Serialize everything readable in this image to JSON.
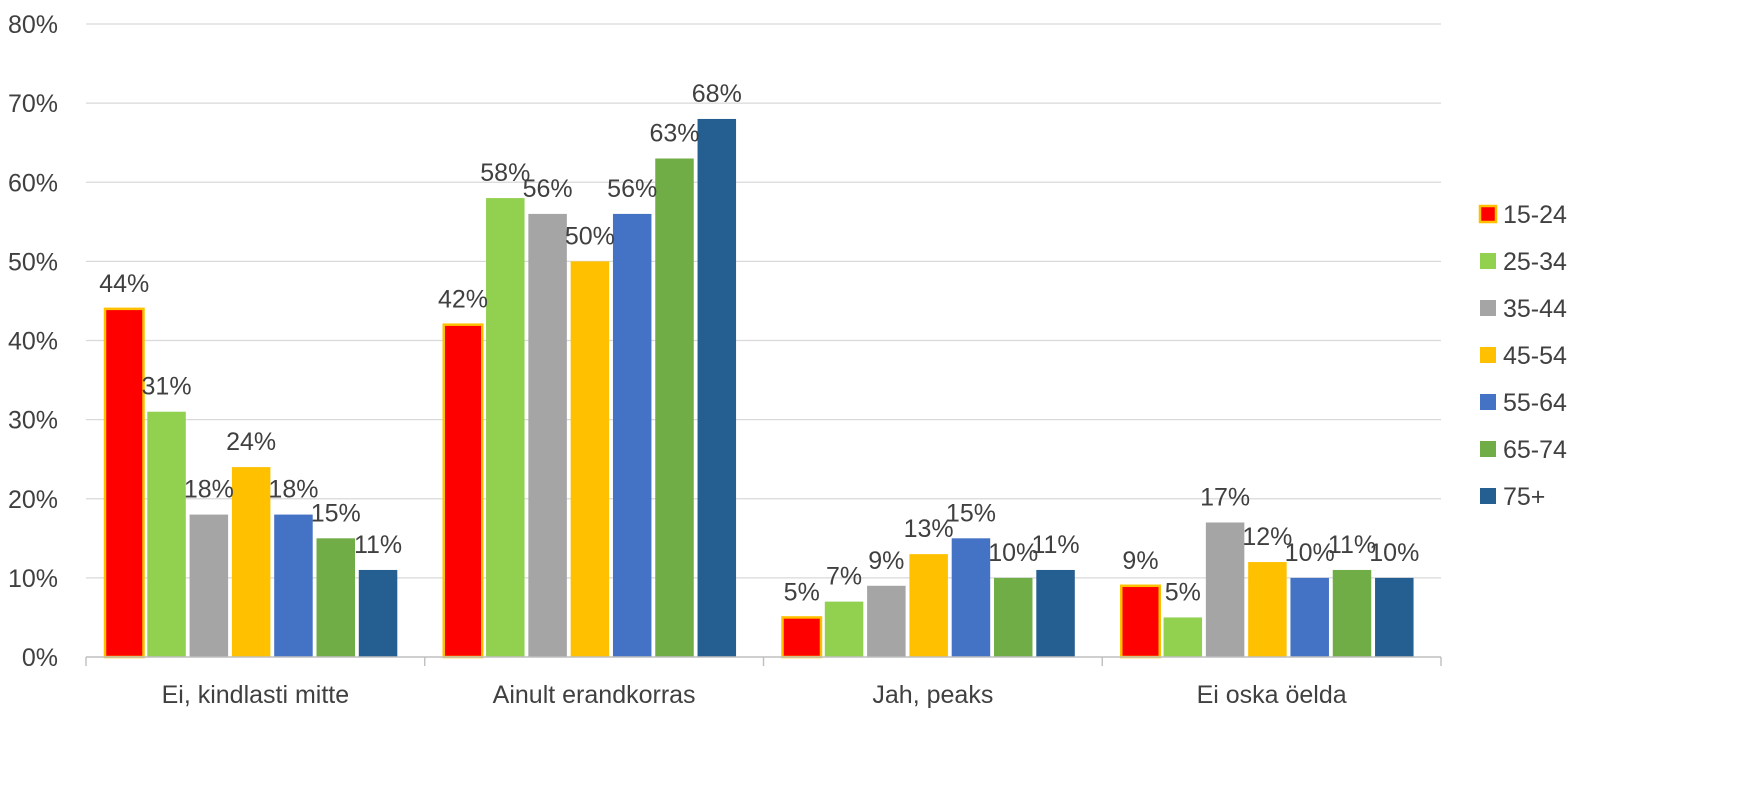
{
  "chart_data": {
    "type": "bar",
    "title": "",
    "xlabel": "",
    "ylabel": "",
    "ylim": [
      0,
      80
    ],
    "yticks": [
      "0%",
      "10%",
      "20%",
      "30%",
      "40%",
      "50%",
      "60%",
      "70%",
      "80%"
    ],
    "grid": true,
    "legend_position": "right",
    "categories": [
      "Ei, kindlasti mitte",
      "Ainult erandkorras",
      "Jah, peaks",
      "Ei oska öelda"
    ],
    "series": [
      {
        "name": "15-24",
        "color": "#FF0000",
        "border": "#FFC000",
        "values": [
          44,
          42,
          5,
          9
        ],
        "labels": [
          "44%",
          "42%",
          "5%",
          "9%"
        ]
      },
      {
        "name": "25-34",
        "color": "#92D050",
        "values": [
          31,
          58,
          7,
          5
        ],
        "labels": [
          "31%",
          "58%",
          "7%",
          "5%"
        ]
      },
      {
        "name": "35-44",
        "color": "#A5A5A5",
        "values": [
          18,
          56,
          9,
          17
        ],
        "labels": [
          "18%",
          "56%",
          "9%",
          "17%"
        ]
      },
      {
        "name": "45-54",
        "color": "#FFC000",
        "values": [
          24,
          50,
          13,
          12
        ],
        "labels": [
          "24%",
          "50%",
          "13%",
          "12%"
        ]
      },
      {
        "name": "55-64",
        "color": "#4472C4",
        "values": [
          18,
          56,
          15,
          10
        ],
        "labels": [
          "18%",
          "56%",
          "15%",
          "10%"
        ]
      },
      {
        "name": "65-74",
        "color": "#70AD47",
        "values": [
          15,
          63,
          10,
          11
        ],
        "labels": [
          "15%",
          "63%",
          "10%",
          "11%"
        ]
      },
      {
        "name": "75+",
        "color": "#255E91",
        "values": [
          11,
          68,
          11,
          10
        ],
        "labels": [
          "11%",
          "68%",
          "11%",
          "10%"
        ]
      }
    ]
  }
}
